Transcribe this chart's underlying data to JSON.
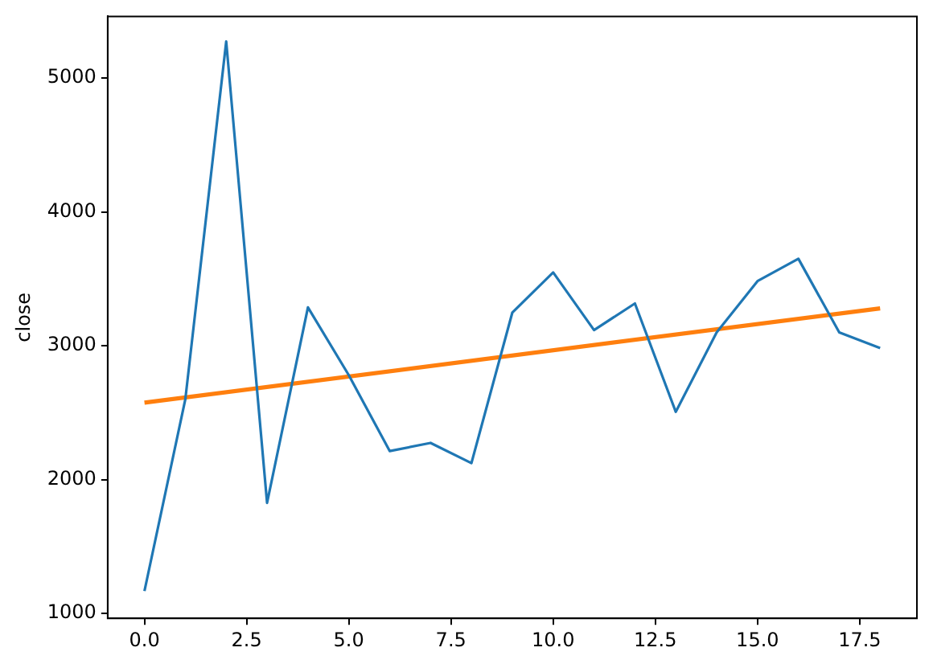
{
  "chart_data": {
    "type": "line",
    "ylabel": "close",
    "x": [
      0,
      1,
      2,
      3,
      4,
      5,
      6,
      7,
      8,
      9,
      10,
      11,
      12,
      13,
      14,
      15,
      16,
      17,
      18
    ],
    "series": [
      {
        "color": "#1f77b4",
        "values": [
          1167,
          2600,
          5273,
          1826,
          3287,
          2780,
          2213,
          2274,
          2123,
          3247,
          3548,
          3117,
          3316,
          2506,
          3100,
          3483,
          3650,
          3100,
          2982
        ]
      },
      {
        "type": "line",
        "color": "#ff7f0e",
        "x": [
          0,
          18
        ],
        "values": [
          2575,
          3279
        ]
      }
    ],
    "xlim": [
      -0.9,
      18.9
    ],
    "xticks": [
      {
        "value": 0,
        "label": "0.0"
      },
      {
        "value": 2.5,
        "label": "2.5"
      },
      {
        "value": 5,
        "label": "5.0"
      },
      {
        "value": 7.5,
        "label": "7.5"
      },
      {
        "value": 10,
        "label": "10.0"
      },
      {
        "value": 12.5,
        "label": "12.5"
      },
      {
        "value": 15,
        "label": "15.0"
      },
      {
        "value": 17.5,
        "label": "17.5"
      }
    ],
    "ylim": [
      963,
      5461
    ],
    "yticks": [
      1000,
      2000,
      3000,
      4000,
      5000
    ],
    "grid": false,
    "legend": false,
    "marker": "none",
    "line_style": "solid"
  }
}
